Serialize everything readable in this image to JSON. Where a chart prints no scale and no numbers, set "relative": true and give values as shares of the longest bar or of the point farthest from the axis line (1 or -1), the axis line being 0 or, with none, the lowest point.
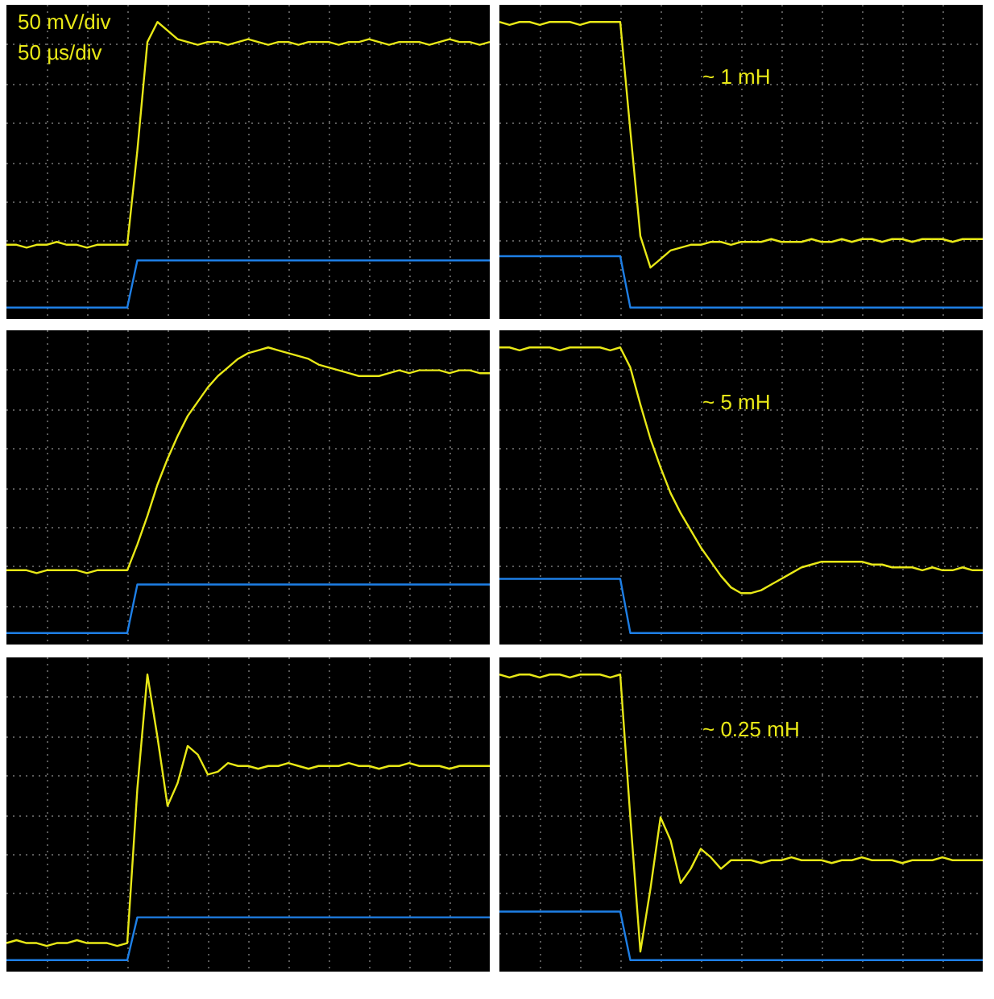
{
  "chart_data": [
    {
      "type": "line",
      "relative": true,
      "grid": true,
      "annotations": [
        "50 mV/div",
        "50 µs/div"
      ],
      "categories": [
        null,
        null,
        null,
        null,
        null,
        null,
        null,
        null,
        null,
        null,
        null,
        null,
        null,
        null,
        null,
        null,
        null,
        null,
        null,
        null,
        null,
        null,
        null,
        null,
        null,
        null,
        null,
        null,
        null,
        null,
        null,
        null,
        null,
        null,
        null,
        null,
        null,
        null,
        null,
        null,
        null,
        null,
        null,
        null,
        null,
        null,
        null,
        null,
        null
      ],
      "series": [
        {
          "color": "#e8e817",
          "values": [
            0.22,
            0.22,
            0.21,
            0.22,
            0.22,
            0.23,
            0.22,
            0.22,
            0.21,
            0.22,
            0.22,
            0.22,
            0.22,
            0.55,
            0.93,
            1,
            0.97,
            0.94,
            0.93,
            0.92,
            0.93,
            0.93,
            0.92,
            0.93,
            0.94,
            0.93,
            0.92,
            0.93,
            0.93,
            0.92,
            0.93,
            0.93,
            0.93,
            0.92,
            0.93,
            0.93,
            0.94,
            0.93,
            0.92,
            0.93,
            0.93,
            0.93,
            0.92,
            0.93,
            0.94,
            0.93,
            0.93,
            0.92,
            0.93
          ]
        },
        {
          "color": "#1e7fe6",
          "values": [
            0,
            0,
            0,
            0,
            0,
            0,
            0,
            0,
            0,
            0,
            0,
            0,
            0,
            0.165,
            0.165,
            0.165,
            0.165,
            0.165,
            0.165,
            0.165,
            0.165,
            0.165,
            0.165,
            0.165,
            0.165,
            0.165,
            0.165,
            0.165,
            0.165,
            0.165,
            0.165,
            0.165,
            0.165,
            0.165,
            0.165,
            0.165,
            0.165,
            0.165,
            0.165,
            0.165,
            0.165,
            0.165,
            0.165,
            0.165,
            0.165,
            0.165,
            0.165,
            0.165,
            0.165
          ]
        }
      ]
    },
    {
      "type": "line",
      "relative": true,
      "grid": true,
      "annotations": [
        "~ 1 mH"
      ],
      "categories": [
        null,
        null,
        null,
        null,
        null,
        null,
        null,
        null,
        null,
        null,
        null,
        null,
        null,
        null,
        null,
        null,
        null,
        null,
        null,
        null,
        null,
        null,
        null,
        null,
        null,
        null,
        null,
        null,
        null,
        null,
        null,
        null,
        null,
        null,
        null,
        null,
        null,
        null,
        null,
        null,
        null,
        null,
        null,
        null,
        null,
        null,
        null,
        null,
        null
      ],
      "series": [
        {
          "color": "#e8e817",
          "values": [
            1,
            0.99,
            1,
            1,
            0.99,
            1,
            1,
            1,
            0.99,
            1,
            1,
            1,
            1,
            0.62,
            0.25,
            0.14,
            0.17,
            0.2,
            0.21,
            0.22,
            0.22,
            0.23,
            0.23,
            0.22,
            0.23,
            0.23,
            0.23,
            0.24,
            0.23,
            0.23,
            0.23,
            0.24,
            0.23,
            0.23,
            0.24,
            0.23,
            0.24,
            0.24,
            0.23,
            0.24,
            0.24,
            0.23,
            0.24,
            0.24,
            0.24,
            0.23,
            0.24,
            0.24,
            0.24
          ]
        },
        {
          "color": "#1e7fe6",
          "values": [
            0.18,
            0.18,
            0.18,
            0.18,
            0.18,
            0.18,
            0.18,
            0.18,
            0.18,
            0.18,
            0.18,
            0.18,
            0.18,
            0,
            0,
            0,
            0,
            0,
            0,
            0,
            0,
            0,
            0,
            0,
            0,
            0,
            0,
            0,
            0,
            0,
            0,
            0,
            0,
            0,
            0,
            0,
            0,
            0,
            0,
            0,
            0,
            0,
            0,
            0,
            0,
            0,
            0,
            0,
            0
          ]
        }
      ]
    },
    {
      "type": "line",
      "relative": true,
      "grid": true,
      "categories": [
        null,
        null,
        null,
        null,
        null,
        null,
        null,
        null,
        null,
        null,
        null,
        null,
        null,
        null,
        null,
        null,
        null,
        null,
        null,
        null,
        null,
        null,
        null,
        null,
        null,
        null,
        null,
        null,
        null,
        null,
        null,
        null,
        null,
        null,
        null,
        null,
        null,
        null,
        null,
        null,
        null,
        null,
        null,
        null,
        null,
        null,
        null,
        null,
        null
      ],
      "series": [
        {
          "color": "#e8e817",
          "values": [
            0.22,
            0.22,
            0.22,
            0.21,
            0.22,
            0.22,
            0.22,
            0.22,
            0.21,
            0.22,
            0.22,
            0.22,
            0.22,
            0.31,
            0.41,
            0.52,
            0.61,
            0.69,
            0.76,
            0.81,
            0.86,
            0.9,
            0.93,
            0.96,
            0.98,
            0.99,
            1,
            0.99,
            0.98,
            0.97,
            0.96,
            0.94,
            0.93,
            0.92,
            0.91,
            0.9,
            0.9,
            0.9,
            0.91,
            0.92,
            0.91,
            0.92,
            0.92,
            0.92,
            0.91,
            0.92,
            0.92,
            0.91,
            0.91
          ]
        },
        {
          "color": "#1e7fe6",
          "values": [
            0,
            0,
            0,
            0,
            0,
            0,
            0,
            0,
            0,
            0,
            0,
            0,
            0,
            0.17,
            0.17,
            0.17,
            0.17,
            0.17,
            0.17,
            0.17,
            0.17,
            0.17,
            0.17,
            0.17,
            0.17,
            0.17,
            0.17,
            0.17,
            0.17,
            0.17,
            0.17,
            0.17,
            0.17,
            0.17,
            0.17,
            0.17,
            0.17,
            0.17,
            0.17,
            0.17,
            0.17,
            0.17,
            0.17,
            0.17,
            0.17,
            0.17,
            0.17,
            0.17,
            0.17
          ]
        }
      ]
    },
    {
      "type": "line",
      "relative": true,
      "grid": true,
      "annotations": [
        "~ 5 mH"
      ],
      "categories": [
        null,
        null,
        null,
        null,
        null,
        null,
        null,
        null,
        null,
        null,
        null,
        null,
        null,
        null,
        null,
        null,
        null,
        null,
        null,
        null,
        null,
        null,
        null,
        null,
        null,
        null,
        null,
        null,
        null,
        null,
        null,
        null,
        null,
        null,
        null,
        null,
        null,
        null,
        null,
        null,
        null,
        null,
        null,
        null,
        null,
        null,
        null,
        null,
        null
      ],
      "series": [
        {
          "color": "#e8e817",
          "values": [
            1,
            1,
            0.99,
            1,
            1,
            1,
            0.99,
            1,
            1,
            1,
            1,
            0.99,
            1,
            0.93,
            0.8,
            0.68,
            0.58,
            0.49,
            0.42,
            0.36,
            0.3,
            0.25,
            0.2,
            0.16,
            0.14,
            0.14,
            0.15,
            0.17,
            0.19,
            0.21,
            0.23,
            0.24,
            0.25,
            0.25,
            0.25,
            0.25,
            0.25,
            0.24,
            0.24,
            0.23,
            0.23,
            0.23,
            0.22,
            0.23,
            0.22,
            0.22,
            0.23,
            0.22,
            0.22
          ]
        },
        {
          "color": "#1e7fe6",
          "values": [
            0.19,
            0.19,
            0.19,
            0.19,
            0.19,
            0.19,
            0.19,
            0.19,
            0.19,
            0.19,
            0.19,
            0.19,
            0.19,
            0,
            0,
            0,
            0,
            0,
            0,
            0,
            0,
            0,
            0,
            0,
            0,
            0,
            0,
            0,
            0,
            0,
            0,
            0,
            0,
            0,
            0,
            0,
            0,
            0,
            0,
            0,
            0,
            0,
            0,
            0,
            0,
            0,
            0,
            0,
            0
          ]
        }
      ]
    },
    {
      "type": "line",
      "relative": true,
      "grid": true,
      "categories": [
        null,
        null,
        null,
        null,
        null,
        null,
        null,
        null,
        null,
        null,
        null,
        null,
        null,
        null,
        null,
        null,
        null,
        null,
        null,
        null,
        null,
        null,
        null,
        null,
        null,
        null,
        null,
        null,
        null,
        null,
        null,
        null,
        null,
        null,
        null,
        null,
        null,
        null,
        null,
        null,
        null,
        null,
        null,
        null,
        null,
        null,
        null,
        null,
        null
      ],
      "series": [
        {
          "color": "#e8e817",
          "values": [
            0.06,
            0.07,
            0.06,
            0.06,
            0.05,
            0.06,
            0.06,
            0.07,
            0.06,
            0.06,
            0.06,
            0.05,
            0.06,
            0.6,
            1,
            0.78,
            0.54,
            0.62,
            0.75,
            0.72,
            0.65,
            0.66,
            0.69,
            0.68,
            0.68,
            0.67,
            0.68,
            0.68,
            0.69,
            0.68,
            0.67,
            0.68,
            0.68,
            0.68,
            0.69,
            0.68,
            0.68,
            0.67,
            0.68,
            0.68,
            0.69,
            0.68,
            0.68,
            0.68,
            0.67,
            0.68,
            0.68,
            0.68,
            0.68
          ]
        },
        {
          "color": "#1e7fe6",
          "values": [
            0,
            0,
            0,
            0,
            0,
            0,
            0,
            0,
            0,
            0,
            0,
            0,
            0,
            0.15,
            0.15,
            0.15,
            0.15,
            0.15,
            0.15,
            0.15,
            0.15,
            0.15,
            0.15,
            0.15,
            0.15,
            0.15,
            0.15,
            0.15,
            0.15,
            0.15,
            0.15,
            0.15,
            0.15,
            0.15,
            0.15,
            0.15,
            0.15,
            0.15,
            0.15,
            0.15,
            0.15,
            0.15,
            0.15,
            0.15,
            0.15,
            0.15,
            0.15,
            0.15,
            0.15
          ]
        }
      ]
    },
    {
      "type": "line",
      "relative": true,
      "grid": true,
      "annotations": [
        "~ 0.25 mH"
      ],
      "categories": [
        null,
        null,
        null,
        null,
        null,
        null,
        null,
        null,
        null,
        null,
        null,
        null,
        null,
        null,
        null,
        null,
        null,
        null,
        null,
        null,
        null,
        null,
        null,
        null,
        null,
        null,
        null,
        null,
        null,
        null,
        null,
        null,
        null,
        null,
        null,
        null,
        null,
        null,
        null,
        null,
        null,
        null,
        null,
        null,
        null,
        null,
        null,
        null,
        null
      ],
      "series": [
        {
          "color": "#e8e817",
          "values": [
            1,
            0.99,
            1,
            1,
            0.99,
            1,
            1,
            0.99,
            1,
            1,
            1,
            0.99,
            1,
            0.5,
            0.03,
            0.25,
            0.5,
            0.42,
            0.27,
            0.32,
            0.39,
            0.36,
            0.32,
            0.35,
            0.35,
            0.35,
            0.34,
            0.35,
            0.35,
            0.36,
            0.35,
            0.35,
            0.35,
            0.34,
            0.35,
            0.35,
            0.36,
            0.35,
            0.35,
            0.35,
            0.34,
            0.35,
            0.35,
            0.35,
            0.36,
            0.35,
            0.35,
            0.35,
            0.35
          ]
        },
        {
          "color": "#1e7fe6",
          "values": [
            0.17,
            0.17,
            0.17,
            0.17,
            0.17,
            0.17,
            0.17,
            0.17,
            0.17,
            0.17,
            0.17,
            0.17,
            0.17,
            0,
            0,
            0,
            0,
            0,
            0,
            0,
            0,
            0,
            0,
            0,
            0,
            0,
            0,
            0,
            0,
            0,
            0,
            0,
            0,
            0,
            0,
            0,
            0,
            0,
            0,
            0,
            0,
            0,
            0,
            0,
            0,
            0,
            0,
            0,
            0
          ]
        }
      ]
    }
  ]
}
